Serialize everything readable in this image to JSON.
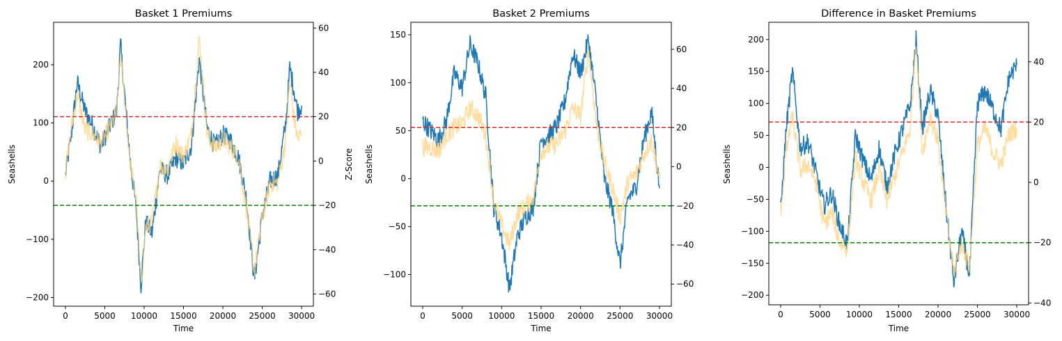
{
  "chart_data": [
    {
      "type": "line",
      "title": "Basket 1 Premiums",
      "xlabel": "Time",
      "ylabel": "Seashells",
      "ylabel_right": "Z-Score",
      "xlim": [
        -1500,
        31500
      ],
      "xticks": [
        0,
        5000,
        10000,
        15000,
        20000,
        25000,
        30000
      ],
      "ylim": [
        -215,
        273
      ],
      "yticks": [
        -200,
        -100,
        0,
        100,
        200
      ],
      "ylim_right": [
        -65.5,
        62.6
      ],
      "yticks_right": [
        -60,
        -40,
        -20,
        0,
        20,
        40,
        60
      ],
      "threshold_upper": 20,
      "threshold_lower": -20,
      "series": [
        {
          "color": "#1f77b4",
          "axis": "left",
          "x": [
            0,
            800,
            1500,
            2500,
            3500,
            4500,
            5500,
            6500,
            7000,
            7600,
            8200,
            9000,
            9600,
            10200,
            11000,
            12000,
            13000,
            14000,
            15000,
            16000,
            17000,
            18000,
            19000,
            20000,
            21000,
            22000,
            23000,
            24000,
            25000,
            26000,
            27000,
            28000,
            28500,
            29000,
            29500,
            30000
          ],
          "y": [
            10,
            85,
            170,
            120,
            95,
            60,
            90,
            120,
            235,
            135,
            40,
            -50,
            -180,
            -70,
            -90,
            20,
            10,
            40,
            30,
            60,
            210,
            90,
            60,
            80,
            70,
            40,
            -30,
            -170,
            -60,
            0,
            10,
            100,
            195,
            160,
            120,
            130
          ]
        },
        {
          "color": "#ffd27f",
          "axis": "right",
          "x": [
            0,
            800,
            1500,
            2500,
            3500,
            4500,
            5500,
            6500,
            7000,
            7600,
            8200,
            9000,
            9600,
            10200,
            11000,
            12000,
            13000,
            14000,
            15000,
            16000,
            17000,
            18000,
            19000,
            20000,
            21000,
            22000,
            23000,
            24000,
            25000,
            26000,
            27000,
            28000,
            28500,
            29000,
            29500,
            30000
          ],
          "y": [
            -5,
            16,
            30,
            14,
            12,
            8,
            14,
            22,
            48,
            24,
            0,
            -18,
            -56,
            -30,
            -28,
            -2,
            -4,
            8,
            2,
            12,
            56,
            12,
            6,
            10,
            6,
            2,
            -22,
            -50,
            -26,
            -10,
            -10,
            10,
            36,
            20,
            10,
            12
          ]
        }
      ]
    },
    {
      "type": "line",
      "title": "Basket 2 Premiums",
      "xlabel": "Time",
      "ylabel": "Seashells",
      "ylim": [
        -133,
        163
      ],
      "yticks": [
        -100,
        -50,
        0,
        50,
        100,
        150
      ],
      "ylim_right": [
        -71.3,
        73.8
      ],
      "yticks_right": [
        -60,
        -40,
        -20,
        0,
        20,
        40,
        60
      ],
      "xlim": [
        -1500,
        31500
      ],
      "xticks": [
        0,
        5000,
        10000,
        15000,
        20000,
        25000,
        30000
      ],
      "threshold_upper": 20,
      "threshold_lower": -20,
      "series": [
        {
          "color": "#1f77b4",
          "axis": "left",
          "x": [
            0,
            1000,
            2000,
            3000,
            4000,
            5000,
            6000,
            7000,
            8000,
            9000,
            10000,
            11000,
            12000,
            13000,
            14000,
            15000,
            16000,
            17000,
            18000,
            19000,
            20000,
            21000,
            22000,
            23000,
            24000,
            25000,
            26000,
            27000,
            28000,
            29000,
            30000
          ],
          "y": [
            60,
            50,
            40,
            60,
            110,
            95,
            140,
            120,
            85,
            -30,
            -60,
            -115,
            -60,
            -40,
            -30,
            40,
            45,
            55,
            80,
            130,
            110,
            145,
            80,
            0,
            -30,
            -90,
            -20,
            -10,
            40,
            70,
            -10
          ]
        },
        {
          "color": "#ffd27f",
          "axis": "right",
          "x": [
            0,
            1000,
            2000,
            3000,
            4000,
            5000,
            6000,
            7000,
            8000,
            9000,
            10000,
            11000,
            12000,
            13000,
            14000,
            15000,
            16000,
            17000,
            18000,
            19000,
            20000,
            21000,
            22000,
            23000,
            24000,
            25000,
            26000,
            27000,
            28000,
            29000,
            30000
          ],
          "y": [
            10,
            10,
            8,
            16,
            20,
            22,
            30,
            26,
            16,
            -18,
            -30,
            -40,
            -24,
            -20,
            -16,
            8,
            10,
            12,
            18,
            30,
            26,
            60,
            22,
            2,
            -10,
            -26,
            -8,
            -4,
            6,
            14,
            -6
          ]
        }
      ]
    },
    {
      "type": "line",
      "title": "Difference in Basket Premiums",
      "xlabel": "Time",
      "ylabel": "Seashells",
      "ylim": [
        -215,
        227
      ],
      "yticks": [
        -200,
        -150,
        -100,
        -50,
        0,
        50,
        100,
        150,
        200
      ],
      "ylim_right": [
        -40.6,
        53.1
      ],
      "yticks_right": [
        -40,
        -20,
        0,
        20,
        40
      ],
      "xlim": [
        -1500,
        31500
      ],
      "xticks": [
        0,
        5000,
        10000,
        15000,
        20000,
        25000,
        30000
      ],
      "threshold_upper": 20,
      "threshold_lower": -20,
      "series": [
        {
          "color": "#1f77b4",
          "axis": "left",
          "x": [
            0,
            700,
            1500,
            2500,
            3500,
            4500,
            5500,
            6500,
            7500,
            8500,
            9500,
            10500,
            11500,
            12500,
            13500,
            14500,
            15500,
            16500,
            17200,
            18000,
            19000,
            20000,
            21000,
            22000,
            23000,
            24000,
            25000,
            26000,
            27000,
            28000,
            29000,
            30000
          ],
          "y": [
            -70,
            60,
            150,
            30,
            40,
            -10,
            -60,
            -40,
            -90,
            -120,
            50,
            10,
            -20,
            30,
            -30,
            20,
            60,
            100,
            200,
            60,
            120,
            80,
            -60,
            -180,
            -100,
            -170,
            100,
            120,
            90,
            60,
            140,
            160
          ]
        },
        {
          "color": "#ffd27f",
          "axis": "right",
          "x": [
            0,
            700,
            1500,
            2500,
            3500,
            4500,
            5500,
            6500,
            7500,
            8500,
            9500,
            10500,
            11500,
            12500,
            13500,
            14500,
            15500,
            16500,
            17200,
            18000,
            19000,
            20000,
            21000,
            22000,
            23000,
            24000,
            25000,
            26000,
            27000,
            28000,
            29000,
            30000
          ],
          "y": [
            -10,
            10,
            22,
            4,
            6,
            0,
            -14,
            -10,
            -20,
            -22,
            8,
            0,
            -6,
            4,
            -6,
            2,
            10,
            18,
            48,
            10,
            22,
            14,
            -10,
            -30,
            -20,
            -28,
            12,
            18,
            10,
            6,
            16,
            18
          ]
        }
      ]
    }
  ],
  "colors": {
    "series_primary": "#1f77b4",
    "series_zscore": "#ffd27f",
    "upper_threshold": "#d62728",
    "lower_threshold": "#008000"
  }
}
